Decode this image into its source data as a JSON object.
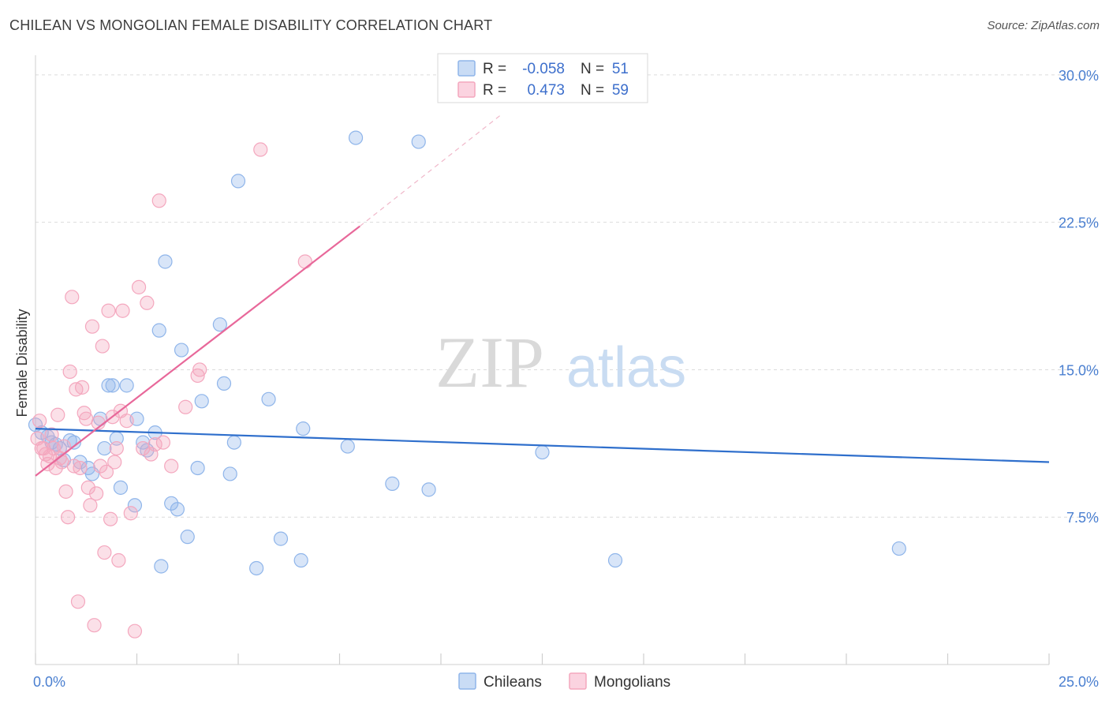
{
  "header": {
    "title": "CHILEAN VS MONGOLIAN FEMALE DISABILITY CORRELATION CHART",
    "source": "Source: ZipAtlas.com"
  },
  "watermark": {
    "zip": "ZIP",
    "atlas": "atlas"
  },
  "legend_top": {
    "rows": [
      {
        "r_label": "R =",
        "r_value": "-0.058",
        "n_label": "N =",
        "n_value": "51",
        "color": "#8fb5ea"
      },
      {
        "r_label": "R =",
        "r_value": "0.473",
        "n_label": "N =",
        "n_value": "59",
        "color": "#f4a7be"
      }
    ]
  },
  "legend_bottom": {
    "items": [
      {
        "label": "Chileans",
        "color": "#8fb5ea"
      },
      {
        "label": "Mongolians",
        "color": "#f4a7be"
      }
    ]
  },
  "chart_data": {
    "type": "scatter",
    "title": "CHILEAN VS MONGOLIAN FEMALE DISABILITY CORRELATION CHART",
    "xlabel": "",
    "ylabel": "Female Disability",
    "xlim": [
      0,
      25
    ],
    "ylim": [
      0,
      31
    ],
    "x_tick_labels": [
      {
        "value": 0,
        "label": "0.0%"
      },
      {
        "value": 25,
        "label": "25.0%"
      }
    ],
    "y_ticks": [
      {
        "value": 7.5,
        "label": "7.5%"
      },
      {
        "value": 15,
        "label": "15.0%"
      },
      {
        "value": 22.5,
        "label": "22.5%"
      },
      {
        "value": 30,
        "label": "30.0%"
      }
    ],
    "x_minor_ticks": [
      0,
      2.5,
      5,
      7.5,
      10,
      12.5,
      15,
      17.5,
      20,
      22.5,
      25
    ],
    "grid": "horizontal dashed",
    "legend_placement": "top-center and bottom-center",
    "series": [
      {
        "name": "Chileans",
        "color": "#8fb5ea",
        "line_color": "#2f6fcc",
        "trend": {
          "x0": 0,
          "y0": 12.0,
          "x1": 25,
          "y1": 10.3
        },
        "points": [
          [
            0.0,
            12.2
          ],
          [
            0.3,
            11.6
          ],
          [
            0.4,
            11.3
          ],
          [
            0.5,
            11.2
          ],
          [
            0.6,
            11.0
          ],
          [
            0.7,
            10.4
          ],
          [
            0.85,
            11.4
          ],
          [
            0.95,
            11.3
          ],
          [
            1.1,
            10.3
          ],
          [
            1.3,
            10.0
          ],
          [
            1.4,
            9.7
          ],
          [
            1.6,
            12.5
          ],
          [
            1.7,
            11.0
          ],
          [
            1.8,
            14.2
          ],
          [
            1.9,
            14.2
          ],
          [
            2.0,
            11.5
          ],
          [
            2.1,
            9.0
          ],
          [
            2.25,
            14.2
          ],
          [
            2.45,
            8.1
          ],
          [
            2.5,
            12.5
          ],
          [
            2.65,
            11.3
          ],
          [
            2.75,
            10.9
          ],
          [
            2.95,
            11.8
          ],
          [
            3.05,
            17.0
          ],
          [
            3.1,
            5.0
          ],
          [
            3.2,
            20.5
          ],
          [
            3.35,
            8.2
          ],
          [
            3.5,
            7.9
          ],
          [
            3.6,
            16.0
          ],
          [
            3.75,
            6.5
          ],
          [
            4.0,
            10.0
          ],
          [
            4.1,
            13.4
          ],
          [
            4.55,
            17.3
          ],
          [
            4.65,
            14.3
          ],
          [
            4.8,
            9.7
          ],
          [
            4.9,
            11.3
          ],
          [
            5.0,
            24.6
          ],
          [
            5.45,
            4.9
          ],
          [
            5.75,
            13.5
          ],
          [
            6.05,
            6.4
          ],
          [
            6.55,
            5.3
          ],
          [
            6.6,
            12.0
          ],
          [
            7.7,
            11.1
          ],
          [
            7.9,
            26.8
          ],
          [
            8.8,
            9.2
          ],
          [
            9.45,
            26.6
          ],
          [
            9.7,
            8.9
          ],
          [
            12.5,
            10.8
          ],
          [
            14.3,
            5.3
          ],
          [
            21.3,
            5.9
          ],
          [
            0.15,
            11.8
          ]
        ]
      },
      {
        "name": "Mongolians",
        "color": "#f4a7be",
        "line_color": "#e8689a",
        "trend": {
          "x0": 0,
          "y0": 9.6,
          "x1": 8.0,
          "y1": 22.3
        },
        "trend_dashed_to": {
          "x": 11.5,
          "y": 28.0
        },
        "points": [
          [
            0.1,
            12.4
          ],
          [
            0.15,
            11.0
          ],
          [
            0.2,
            11.0
          ],
          [
            0.25,
            10.7
          ],
          [
            0.3,
            10.2
          ],
          [
            0.35,
            10.6
          ],
          [
            0.4,
            11.7
          ],
          [
            0.45,
            11.0
          ],
          [
            0.5,
            10.0
          ],
          [
            0.55,
            12.7
          ],
          [
            0.6,
            10.5
          ],
          [
            0.65,
            10.3
          ],
          [
            0.7,
            11.1
          ],
          [
            0.75,
            8.8
          ],
          [
            0.8,
            7.5
          ],
          [
            0.85,
            14.9
          ],
          [
            0.9,
            18.7
          ],
          [
            0.95,
            10.1
          ],
          [
            1.0,
            14.0
          ],
          [
            1.05,
            3.2
          ],
          [
            1.1,
            10.0
          ],
          [
            1.15,
            14.1
          ],
          [
            1.2,
            12.8
          ],
          [
            1.25,
            12.5
          ],
          [
            1.3,
            9.0
          ],
          [
            1.35,
            8.1
          ],
          [
            1.4,
            17.2
          ],
          [
            1.45,
            2.0
          ],
          [
            1.5,
            8.7
          ],
          [
            1.55,
            12.3
          ],
          [
            1.6,
            10.1
          ],
          [
            1.65,
            16.2
          ],
          [
            1.7,
            5.7
          ],
          [
            1.75,
            9.8
          ],
          [
            1.8,
            18.0
          ],
          [
            1.85,
            7.4
          ],
          [
            1.9,
            12.6
          ],
          [
            1.95,
            10.3
          ],
          [
            2.0,
            11.0
          ],
          [
            2.05,
            5.3
          ],
          [
            2.1,
            12.9
          ],
          [
            2.15,
            18.0
          ],
          [
            2.25,
            12.4
          ],
          [
            2.35,
            7.7
          ],
          [
            2.45,
            1.7
          ],
          [
            2.55,
            19.2
          ],
          [
            2.65,
            11.0
          ],
          [
            2.75,
            18.4
          ],
          [
            2.85,
            10.7
          ],
          [
            2.95,
            11.2
          ],
          [
            3.05,
            23.6
          ],
          [
            3.15,
            11.3
          ],
          [
            3.35,
            10.1
          ],
          [
            3.7,
            13.1
          ],
          [
            4.0,
            14.7
          ],
          [
            4.05,
            15.0
          ],
          [
            5.55,
            26.2
          ],
          [
            6.65,
            20.5
          ],
          [
            0.05,
            11.5
          ]
        ]
      }
    ]
  }
}
